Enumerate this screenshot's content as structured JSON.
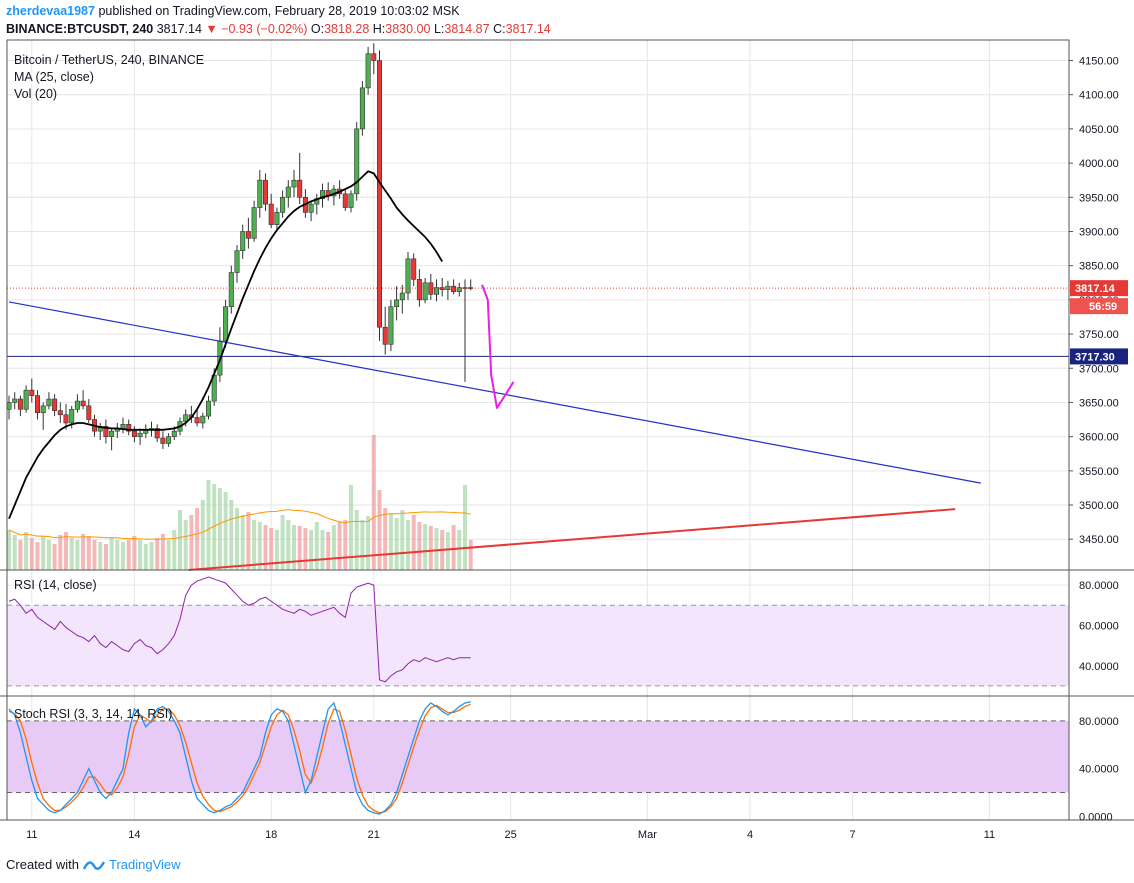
{
  "header": {
    "user": "zherdevaa1987",
    "published_text": "published on TradingView.com, February 28, 2019 10:03:02 MSK",
    "symbol_line": "BINANCE:BTCUSDT, 240",
    "last": "3817.14",
    "change": "▼ −0.93 (−0.02%)",
    "o_label": "O:",
    "o_value": "3818.28",
    "h_label": "H:",
    "h_value": "3830.00",
    "l_label": "L:",
    "l_value": "3814.87",
    "c_label": "C:",
    "c_value": "3817.14"
  },
  "legend": {
    "title": "Bitcoin / TetherUS, 240, BINANCE",
    "ma": "MA (25, close)",
    "vol": "Vol (20)",
    "rsi": "RSI (14, close)",
    "stoch": "Stoch RSI (3, 3, 14, 14, RSI)"
  },
  "footer": {
    "created": "Created with",
    "brand": "TradingView"
  },
  "colors": {
    "up": "#4caf50",
    "down": "#e53935",
    "ma": "#000000",
    "trend_blue": "#2430c8",
    "trend_red": "#e53935",
    "projection": "#e91ee9",
    "rsi": "#8e24aa",
    "stoch_k": "#2196f3",
    "stoch_d": "#ff6d00"
  },
  "chart_data": {
    "type": "candlestick",
    "x_ticks": [
      {
        "label": "11",
        "t": 4
      },
      {
        "label": "14",
        "t": 22
      },
      {
        "label": "18",
        "t": 46
      },
      {
        "label": "21",
        "t": 64
      },
      {
        "label": "25",
        "t": 88
      },
      {
        "label": "Mar",
        "t": 112
      },
      {
        "label": "4",
        "t": 130
      },
      {
        "label": "7",
        "t": 148
      },
      {
        "label": "11",
        "t": 172
      }
    ],
    "price_axis": {
      "min": 3405,
      "max": 4180,
      "ticks": [
        "4150.00",
        "4100.00",
        "4050.00",
        "4000.00",
        "3950.00",
        "3900.00",
        "3850.00",
        "3800.00",
        "3750.00",
        "3700.00",
        "3650.00",
        "3600.00",
        "3550.00",
        "3500.00",
        "3450.00"
      ]
    },
    "price_labels": {
      "last": "3817.14",
      "countdown": "56:59",
      "level": "3717.30"
    },
    "levels": {
      "last": 3817.14,
      "horizontal": 3717.3
    },
    "candles": [
      [
        3640,
        3660,
        3625,
        3650
      ],
      [
        3650,
        3665,
        3640,
        3655
      ],
      [
        3655,
        3660,
        3630,
        3640
      ],
      [
        3640,
        3675,
        3635,
        3668
      ],
      [
        3668,
        3685,
        3650,
        3660
      ],
      [
        3660,
        3668,
        3625,
        3635
      ],
      [
        3635,
        3650,
        3610,
        3645
      ],
      [
        3645,
        3665,
        3640,
        3655
      ],
      [
        3655,
        3662,
        3630,
        3638
      ],
      [
        3638,
        3650,
        3620,
        3632
      ],
      [
        3632,
        3648,
        3610,
        3620
      ],
      [
        3620,
        3645,
        3612,
        3640
      ],
      [
        3640,
        3662,
        3635,
        3652
      ],
      [
        3652,
        3668,
        3640,
        3645
      ],
      [
        3645,
        3655,
        3620,
        3625
      ],
      [
        3625,
        3632,
        3600,
        3608
      ],
      [
        3608,
        3620,
        3595,
        3615
      ],
      [
        3615,
        3625,
        3590,
        3600
      ],
      [
        3600,
        3612,
        3580,
        3608
      ],
      [
        3608,
        3620,
        3598,
        3612
      ],
      [
        3612,
        3628,
        3605,
        3618
      ],
      [
        3618,
        3625,
        3602,
        3608
      ],
      [
        3608,
        3615,
        3592,
        3600
      ],
      [
        3600,
        3612,
        3588,
        3605
      ],
      [
        3605,
        3618,
        3598,
        3610
      ],
      [
        3610,
        3622,
        3600,
        3612
      ],
      [
        3612,
        3618,
        3592,
        3598
      ],
      [
        3598,
        3608,
        3582,
        3590
      ],
      [
        3590,
        3605,
        3585,
        3600
      ],
      [
        3600,
        3615,
        3595,
        3608
      ],
      [
        3608,
        3628,
        3602,
        3622
      ],
      [
        3622,
        3640,
        3615,
        3632
      ],
      [
        3632,
        3645,
        3620,
        3628
      ],
      [
        3628,
        3640,
        3615,
        3620
      ],
      [
        3620,
        3635,
        3612,
        3630
      ],
      [
        3630,
        3660,
        3625,
        3652
      ],
      [
        3652,
        3700,
        3645,
        3690
      ],
      [
        3690,
        3760,
        3680,
        3740
      ],
      [
        3740,
        3800,
        3730,
        3790
      ],
      [
        3790,
        3850,
        3780,
        3840
      ],
      [
        3840,
        3880,
        3825,
        3872
      ],
      [
        3872,
        3910,
        3860,
        3900
      ],
      [
        3900,
        3920,
        3875,
        3890
      ],
      [
        3890,
        3945,
        3885,
        3935
      ],
      [
        3935,
        3990,
        3920,
        3975
      ],
      [
        3975,
        3985,
        3930,
        3940
      ],
      [
        3940,
        3955,
        3905,
        3910
      ],
      [
        3910,
        3935,
        3900,
        3928
      ],
      [
        3928,
        3960,
        3920,
        3950
      ],
      [
        3950,
        3975,
        3935,
        3965
      ],
      [
        3965,
        3990,
        3950,
        3975
      ],
      [
        3975,
        4015,
        3940,
        3950
      ],
      [
        3950,
        3962,
        3920,
        3928
      ],
      [
        3928,
        3945,
        3915,
        3940
      ],
      [
        3940,
        3955,
        3925,
        3948
      ],
      [
        3948,
        3970,
        3935,
        3960
      ],
      [
        3960,
        3972,
        3945,
        3952
      ],
      [
        3952,
        3968,
        3938,
        3962
      ],
      [
        3962,
        3975,
        3948,
        3955
      ],
      [
        3955,
        3962,
        3930,
        3935
      ],
      [
        3935,
        3960,
        3928,
        3955
      ],
      [
        3955,
        4060,
        3945,
        4050
      ],
      [
        4050,
        4120,
        4040,
        4110
      ],
      [
        4110,
        4170,
        4100,
        4160
      ],
      [
        4160,
        4175,
        4130,
        4150
      ],
      [
        4150,
        4165,
        3740,
        3760
      ],
      [
        3760,
        3790,
        3720,
        3735
      ],
      [
        3735,
        3800,
        3725,
        3790
      ],
      [
        3790,
        3820,
        3770,
        3800
      ],
      [
        3800,
        3822,
        3780,
        3810
      ],
      [
        3810,
        3870,
        3800,
        3860
      ],
      [
        3860,
        3868,
        3820,
        3830
      ],
      [
        3830,
        3845,
        3790,
        3800
      ],
      [
        3800,
        3832,
        3795,
        3825
      ],
      [
        3825,
        3838,
        3800,
        3808
      ],
      [
        3808,
        3830,
        3798,
        3818
      ],
      [
        3818,
        3832,
        3805,
        3815
      ],
      [
        3815,
        3828,
        3800,
        3820
      ],
      [
        3820,
        3830,
        3808,
        3812
      ],
      [
        3812,
        3825,
        3805,
        3818
      ],
      [
        3818,
        3830,
        3680,
        3818
      ],
      [
        3818,
        3830,
        3814,
        3817
      ]
    ],
    "volume": [
      40,
      35,
      30,
      38,
      32,
      28,
      34,
      30,
      26,
      35,
      38,
      32,
      30,
      36,
      34,
      30,
      28,
      26,
      32,
      30,
      28,
      30,
      34,
      30,
      26,
      28,
      32,
      36,
      30,
      40,
      60,
      50,
      55,
      62,
      70,
      90,
      86,
      82,
      78,
      70,
      62,
      55,
      58,
      50,
      48,
      45,
      42,
      40,
      55,
      50,
      45,
      44,
      42,
      40,
      48,
      40,
      38,
      45,
      48,
      50,
      85,
      60,
      50,
      54,
      135,
      80,
      62,
      56,
      52,
      60,
      50,
      55,
      48,
      46,
      44,
      42,
      40,
      38,
      45,
      40,
      85,
      30
    ],
    "ma25": [
      3480,
      3500,
      3520,
      3540,
      3555,
      3570,
      3582,
      3592,
      3602,
      3610,
      3615,
      3618,
      3620,
      3620,
      3618,
      3616,
      3614,
      3613,
      3612,
      3612,
      3611,
      3610,
      3610,
      3610,
      3610,
      3610,
      3610,
      3610,
      3611,
      3612,
      3615,
      3620,
      3628,
      3640,
      3655,
      3672,
      3692,
      3712,
      3735,
      3758,
      3780,
      3802,
      3822,
      3842,
      3860,
      3876,
      3890,
      3902,
      3912,
      3922,
      3930,
      3936,
      3940,
      3944,
      3947,
      3950,
      3952,
      3955,
      3958,
      3962,
      3966,
      3972,
      3980,
      3988,
      3985,
      3972,
      3960,
      3948,
      3935,
      3925,
      3916,
      3908,
      3900,
      3892,
      3882,
      3870,
      3856
    ],
    "rsi_axis": {
      "min": 25,
      "max": 87,
      "ticks": [
        "80.0000",
        "60.0000",
        "40.0000"
      ],
      "band": [
        30,
        70
      ]
    },
    "rsi": [
      72,
      73,
      70,
      66,
      68,
      64,
      62,
      60,
      58,
      62,
      59,
      57,
      55,
      54,
      52,
      55,
      51,
      49,
      52,
      50,
      48,
      47,
      51,
      53,
      50,
      49,
      46,
      48,
      51,
      55,
      63,
      75,
      80,
      82,
      83,
      84,
      83,
      82,
      81,
      78,
      75,
      72,
      70,
      71,
      73,
      74,
      72,
      70,
      68,
      67,
      66,
      68,
      67,
      65,
      66,
      67,
      68,
      69,
      66,
      64,
      76,
      79,
      80,
      81,
      80,
      33,
      32,
      35,
      37,
      38,
      41,
      43,
      42,
      44,
      43,
      42,
      43,
      44,
      43,
      44,
      44,
      44
    ],
    "stoch_axis": {
      "min": -3,
      "max": 100,
      "ticks": [
        "80.0000",
        "40.0000",
        "0.0000"
      ],
      "band": [
        20,
        80
      ]
    },
    "stoch_k": [
      90,
      85,
      70,
      50,
      30,
      15,
      10,
      5,
      3,
      5,
      10,
      15,
      20,
      30,
      40,
      30,
      20,
      15,
      20,
      30,
      40,
      70,
      90,
      85,
      75,
      80,
      90,
      92,
      88,
      80,
      70,
      50,
      30,
      15,
      10,
      5,
      3,
      5,
      8,
      10,
      15,
      20,
      30,
      40,
      50,
      70,
      85,
      90,
      88,
      80,
      60,
      40,
      20,
      30,
      50,
      70,
      90,
      95,
      80,
      60,
      40,
      20,
      10,
      5,
      3,
      2,
      5,
      10,
      20,
      35,
      50,
      65,
      80,
      90,
      95,
      92,
      88,
      85,
      88,
      92,
      95,
      96
    ],
    "stoch_d": [
      88,
      86,
      80,
      65,
      45,
      28,
      15,
      9,
      5,
      5,
      8,
      12,
      17,
      24,
      33,
      33,
      27,
      20,
      18,
      24,
      33,
      52,
      75,
      85,
      82,
      79,
      85,
      90,
      90,
      85,
      76,
      62,
      45,
      28,
      17,
      10,
      5,
      4,
      6,
      8,
      12,
      17,
      25,
      35,
      45,
      60,
      75,
      85,
      89,
      85,
      72,
      55,
      35,
      28,
      40,
      58,
      78,
      90,
      88,
      72,
      52,
      32,
      18,
      9,
      5,
      3,
      4,
      8,
      15,
      28,
      43,
      58,
      72,
      84,
      91,
      93,
      90,
      87,
      87,
      89,
      92,
      94
    ],
    "projection": [
      {
        "t": 83,
        "p": 3822
      },
      {
        "t": 84,
        "p": 3800
      },
      {
        "t": 84.6,
        "p": 3690
      },
      {
        "t": 85.6,
        "p": 3642
      },
      {
        "t": 87,
        "p": 3660
      },
      {
        "t": 88.5,
        "p": 3680
      }
    ],
    "trendlines": {
      "blue": [
        {
          "t": 0,
          "p": 3797
        },
        {
          "t": 170.5,
          "p": 3532
        }
      ],
      "red": [
        {
          "t": 31.5,
          "p": 3405
        },
        {
          "t": 166,
          "p": 3494
        }
      ]
    }
  }
}
